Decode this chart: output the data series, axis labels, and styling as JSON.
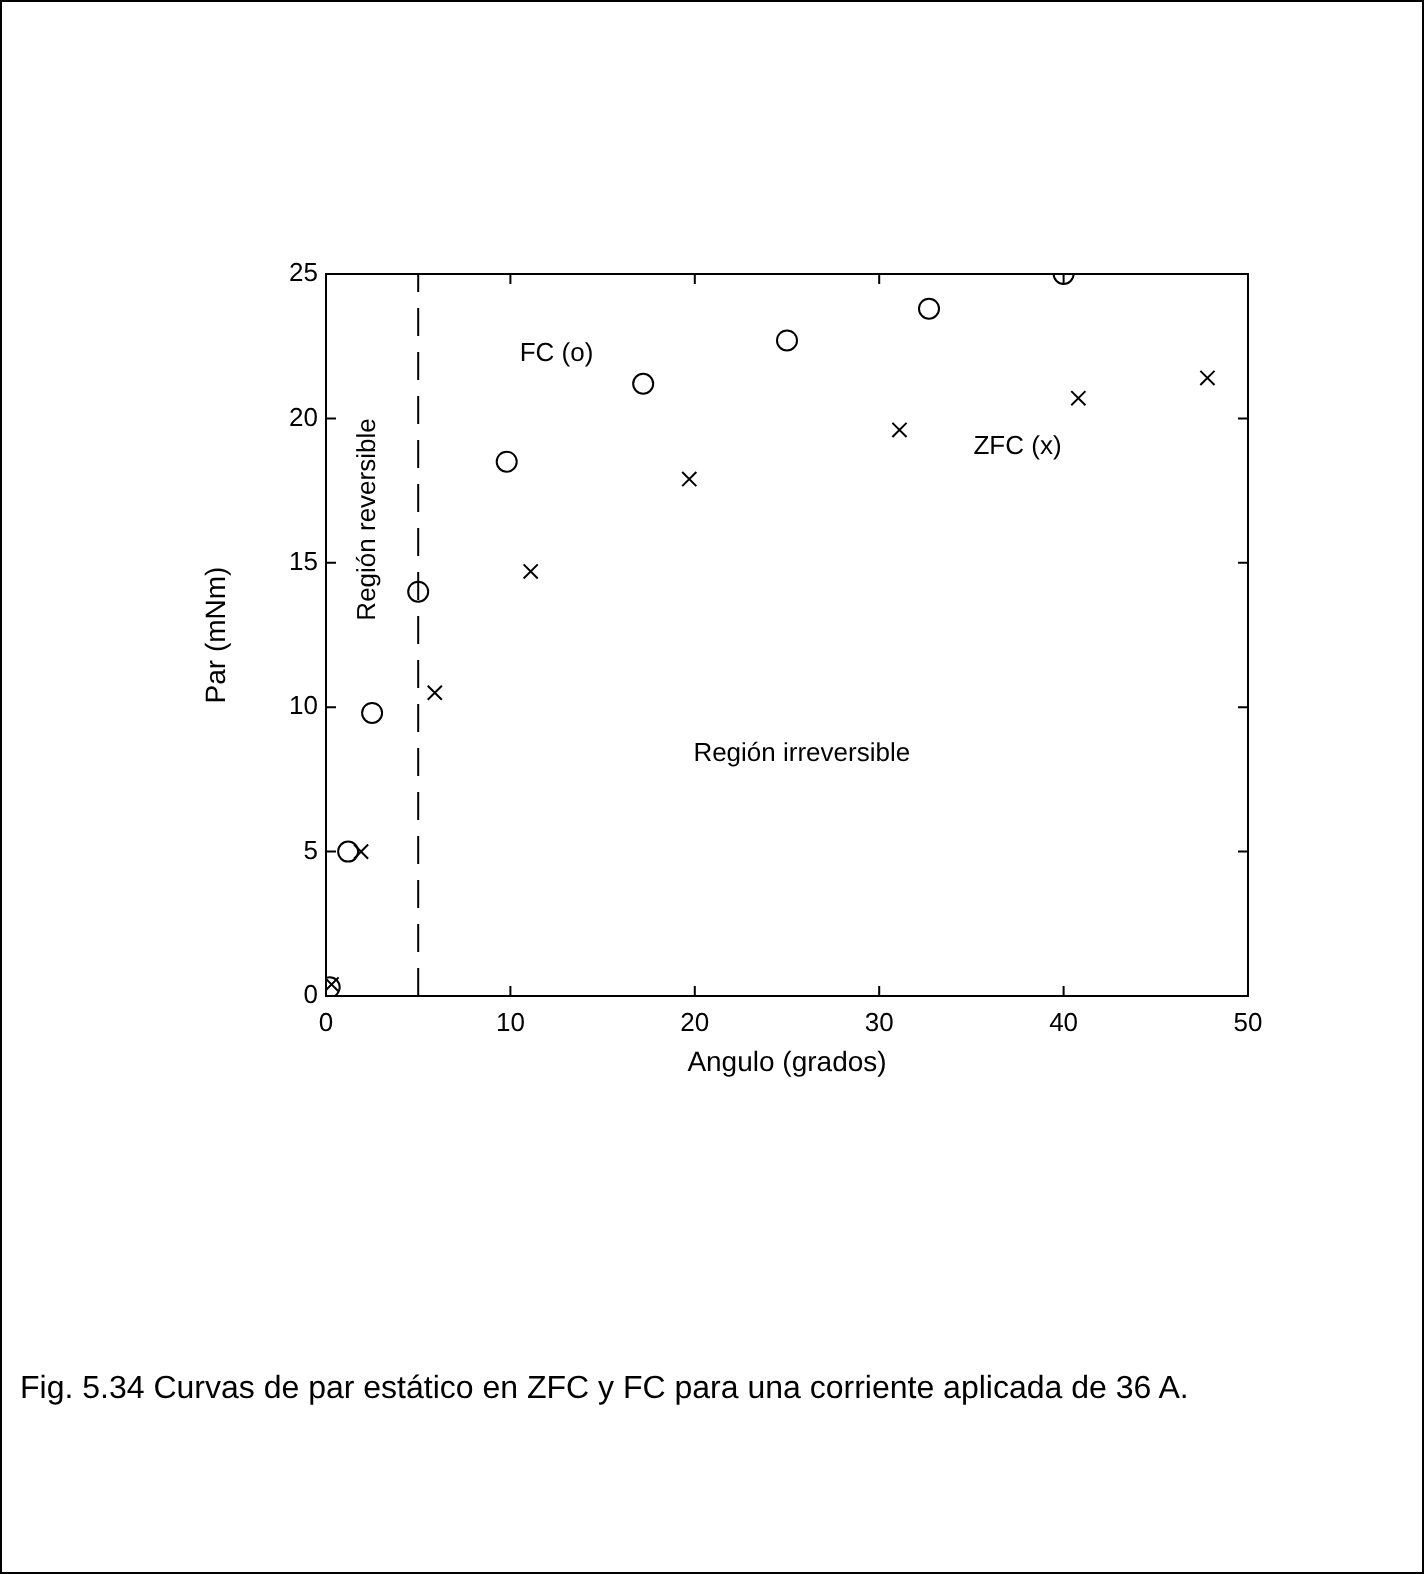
{
  "chart_data": {
    "type": "scatter",
    "xlabel": "Angulo (grados)",
    "ylabel": "Par (mNm)",
    "xlim": [
      0,
      50
    ],
    "xticks": [
      0,
      10,
      20,
      30,
      40,
      50
    ],
    "ylim": [
      0,
      25
    ],
    "yticks": [
      0,
      5,
      10,
      15,
      20,
      25
    ],
    "grid": false,
    "legend": false,
    "series": [
      {
        "name": "FC (o)",
        "color": "#000000",
        "marker": "circle",
        "x": [
          0.2,
          1.2,
          2.5,
          5.0,
          9.8,
          17.2,
          25.0,
          32.7,
          40.0
        ],
        "values": [
          0.3,
          5.0,
          9.8,
          14.0,
          18.5,
          21.2,
          22.7,
          23.8,
          25.0
        ]
      },
      {
        "name": "ZFC (x)",
        "color": "#000000",
        "marker": "cross",
        "x": [
          0.3,
          1.9,
          5.9,
          11.1,
          19.7,
          31.1,
          40.8,
          47.8
        ],
        "values": [
          0.4,
          5.0,
          10.5,
          14.7,
          17.9,
          19.6,
          20.7,
          21.4
        ]
      }
    ],
    "ref_lines": [
      {
        "axis": "x",
        "value": 5,
        "label": "Región reversible",
        "line_style": "dashed",
        "color": "#000000"
      }
    ],
    "annotations": [
      "Región irreversible",
      "Fig. 5.34  Curvas de par estático en ZFC y FC para una corriente aplicada de 36 A."
    ]
  }
}
